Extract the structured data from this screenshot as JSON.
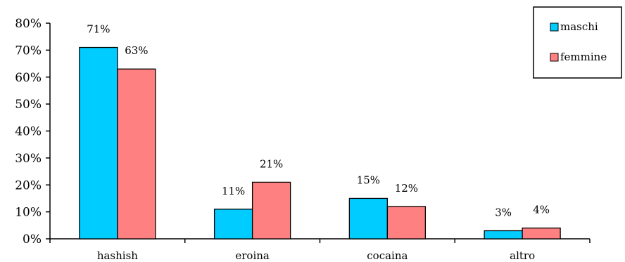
{
  "chart_data": {
    "type": "bar",
    "title": "",
    "xlabel": "",
    "ylabel": "",
    "categories": [
      "hashish",
      "eroina",
      "cocaina",
      "altro"
    ],
    "series": [
      {
        "name": "maschi",
        "values": [
          71,
          11,
          15,
          3
        ],
        "labels": [
          "71%",
          "11%",
          "15%",
          "3%"
        ],
        "color": "#00CCFF"
      },
      {
        "name": "femmine",
        "values": [
          63,
          21,
          12,
          4
        ],
        "labels": [
          "63%",
          "21%",
          "12%",
          "4%"
        ],
        "color": "#FF8080"
      }
    ],
    "ylim": [
      0,
      80
    ],
    "yticks": [
      0,
      10,
      20,
      30,
      40,
      50,
      60,
      70,
      80
    ],
    "ytick_labels": [
      "0%",
      "10%",
      "20%",
      "30%",
      "40%",
      "50%",
      "60%",
      "70%",
      "80%"
    ],
    "grid": false,
    "legend_position": "top-right"
  }
}
